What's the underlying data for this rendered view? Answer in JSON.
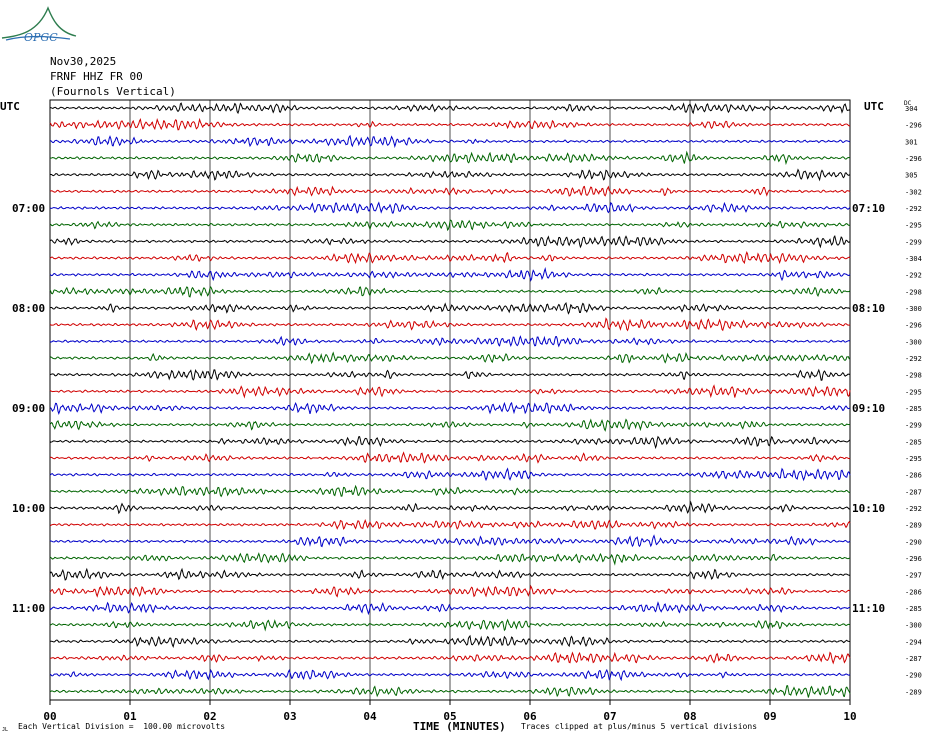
{
  "logo_text": "OPGC",
  "header": {
    "date": "Nov30,2025",
    "station": "FRNF HHZ FR 00",
    "name": "(Fournols Vertical)"
  },
  "left_axis_label": "UTC",
  "right_axis_label": "UTC",
  "dc_label": "DC",
  "footer": {
    "scale_note": "Each Vertical Division =  100.00 microvolts",
    "x_title": "TIME (MINUTES)",
    "clip_note": "Traces clipped at plus/minus 5 vertical divisions",
    "corner_mark": "JL"
  },
  "colors": {
    "trace_cycle": [
      "#000000",
      "#d00000",
      "#0000c8",
      "#006400"
    ],
    "grid": "#000000"
  },
  "chart_data": {
    "type": "line",
    "title": "",
    "xlabel": "TIME (MINUTES)",
    "ylabel": "UTC",
    "xlim": [
      0,
      10
    ],
    "x_ticks": [
      "00",
      "01",
      "02",
      "03",
      "04",
      "05",
      "06",
      "07",
      "08",
      "09",
      "10"
    ],
    "left_time_labels": [
      {
        "trace": 6,
        "label": "07:00"
      },
      {
        "trace": 12,
        "label": "08:00"
      },
      {
        "trace": 18,
        "label": "09:00"
      },
      {
        "trace": 24,
        "label": "10:00"
      },
      {
        "trace": 30,
        "label": "11:00"
      }
    ],
    "right_time_labels": [
      {
        "trace": 6,
        "label": "07:10"
      },
      {
        "trace": 12,
        "label": "08:10"
      },
      {
        "trace": 18,
        "label": "09:10"
      },
      {
        "trace": 24,
        "label": "10:10"
      },
      {
        "trace": 30,
        "label": "11:10"
      }
    ],
    "trace_count": 36,
    "dc_offsets": [
      "304",
      "-296",
      "301",
      "-296",
      "305",
      "-302",
      "-292",
      "-295",
      "-299",
      "-304",
      "-292",
      "-298",
      "-300",
      "-296",
      "-300",
      "-292",
      "-298",
      "-295",
      "-285",
      "-299",
      "-285",
      "-295",
      "-286",
      "-287",
      "-292",
      "-289",
      "-290",
      "-296",
      "-297",
      "-286",
      "-285",
      "-300",
      "-294",
      "-287",
      "-290",
      "-289"
    ],
    "units": "microvolts",
    "vertical_division_microvolts": 100.0,
    "clip_divisions": 5
  }
}
